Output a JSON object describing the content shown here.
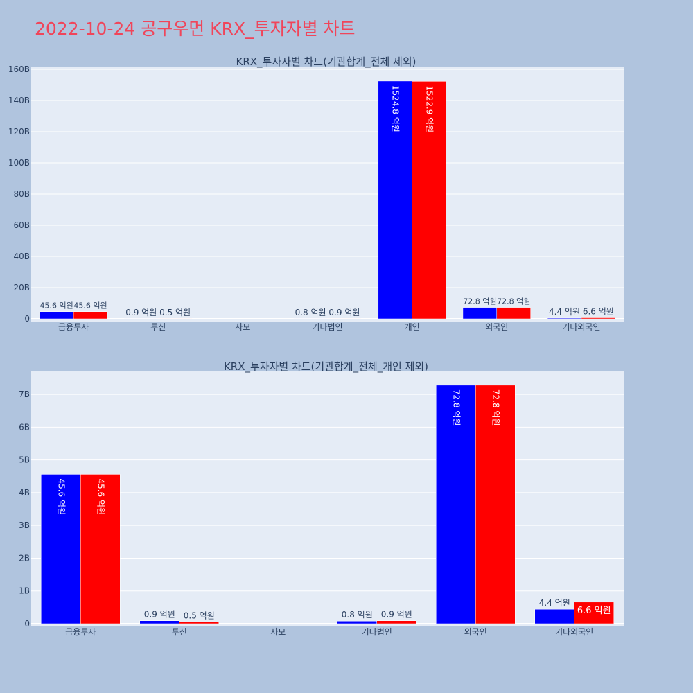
{
  "page_title": "2022-10-24 공구우먼 KRX_투자자별 차트",
  "colors": {
    "background": "#b0c4de",
    "plot_bg": "#e5ecf6",
    "gridline": "#ffffff",
    "series_a": "#0000ff",
    "series_b": "#ff0000",
    "title": "#f0455a",
    "axis_text": "#2a3f5f"
  },
  "chart_data": [
    {
      "type": "bar",
      "title": "KRX_투자자별 차트(기관합계_전체 제외)",
      "categories": [
        "금융투자",
        "투신",
        "사모",
        "기타법인",
        "개인",
        "외국인",
        "기타외국인"
      ],
      "series": [
        {
          "values": [
            4.56,
            0.09,
            0,
            0.08,
            152.48,
            7.28,
            0.44
          ],
          "text": [
            "45.6 억원",
            "0.9 억원",
            "",
            "0.8 억원",
            "1524.8 억원",
            "72.8 억원",
            "4.4 억원"
          ]
        },
        {
          "values": [
            4.56,
            0.05,
            0,
            0.09,
            152.29,
            7.28,
            0.66
          ],
          "text": [
            "45.6 억원",
            "0.5 억원",
            "",
            "0.9 억원",
            "1522.9 억원",
            "72.8 억원",
            "6.6 억원"
          ]
        }
      ],
      "ylim": [
        0,
        160
      ],
      "yticks": [
        0,
        20,
        40,
        60,
        80,
        100,
        120,
        140,
        160
      ],
      "ytick_labels": [
        "0",
        "20B",
        "40B",
        "60B",
        "80B",
        "100B",
        "120B",
        "140B",
        "160B"
      ],
      "grid": true,
      "legend": "none"
    },
    {
      "type": "bar",
      "title": "KRX_투자자별 차트(기관합계_전체_개인 제외)",
      "categories": [
        "금융투자",
        "투신",
        "사모",
        "기타법인",
        "외국인",
        "기타외국인"
      ],
      "series": [
        {
          "values": [
            4.56,
            0.09,
            0,
            0.08,
            7.28,
            0.44
          ],
          "text": [
            "45.6 억원",
            "0.9 억원",
            "",
            "0.8 억원",
            "72.8 억원",
            "4.4 억원"
          ]
        },
        {
          "values": [
            4.56,
            0.05,
            0,
            0.09,
            7.28,
            0.66
          ],
          "text": [
            "45.6 억원",
            "0.5 억원",
            "",
            "0.9 억원",
            "72.8 억원",
            "6.6 억원"
          ]
        }
      ],
      "ylim": [
        0,
        7.7
      ],
      "yticks": [
        0,
        1,
        2,
        3,
        4,
        5,
        6,
        7
      ],
      "ytick_labels": [
        "0",
        "1B",
        "2B",
        "3B",
        "4B",
        "5B",
        "6B",
        "7B"
      ],
      "grid": true,
      "legend": "none"
    }
  ]
}
